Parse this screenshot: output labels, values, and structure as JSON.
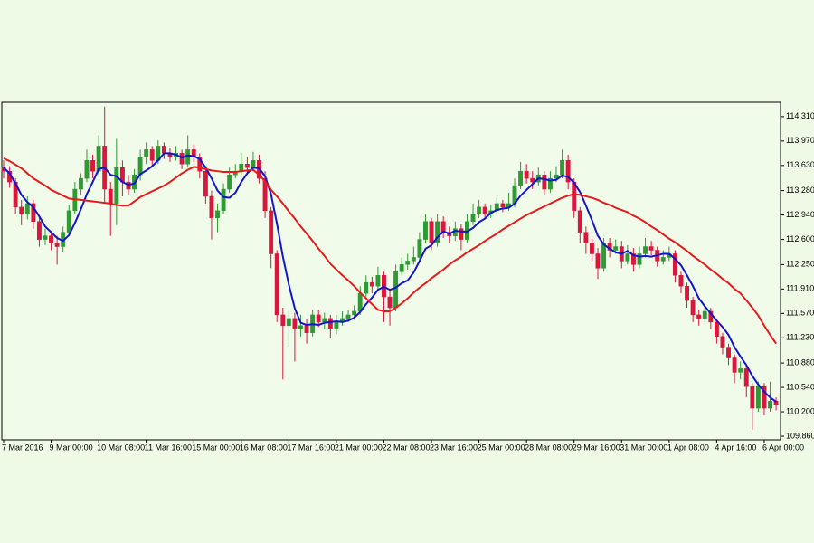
{
  "chart_data": {
    "type": "candlestick",
    "categories": [
      "7 Mar 2016",
      null,
      null,
      null,
      null,
      null,
      null,
      null,
      "9 Mar 00:00",
      null,
      null,
      null,
      null,
      null,
      null,
      null,
      "10 Mar 08:00",
      null,
      null,
      null,
      null,
      null,
      null,
      null,
      "11 Mar 16:00",
      null,
      null,
      null,
      null,
      null,
      null,
      null,
      "15 Mar 00:00",
      null,
      null,
      null,
      null,
      null,
      null,
      null,
      "16 Mar 08:00",
      null,
      null,
      null,
      null,
      null,
      null,
      null,
      "17 Mar 16:00",
      null,
      null,
      null,
      null,
      null,
      null,
      null,
      "21 Mar 00:00",
      null,
      null,
      null,
      null,
      null,
      null,
      null,
      "22 Mar 08:00",
      null,
      null,
      null,
      null,
      null,
      null,
      null,
      "23 Mar 16:00",
      null,
      null,
      null,
      null,
      null,
      null,
      null,
      "25 Mar 00:00",
      null,
      null,
      null,
      null,
      null,
      null,
      null,
      "28 Mar 08:00",
      null,
      null,
      null,
      null,
      null,
      null,
      null,
      "29 Mar 16:00",
      null,
      null,
      null,
      null,
      null,
      null,
      null,
      "31 Mar 00:00",
      null,
      null,
      null,
      null,
      null,
      null,
      null,
      "1 Apr 08:00",
      null,
      null,
      null,
      null,
      null,
      null,
      null,
      "4 Apr 16:00",
      null,
      null,
      null,
      null,
      null,
      null,
      null,
      "6 Apr 00:00",
      null,
      null
    ],
    "open": [
      113.6,
      113.55,
      113.4,
      113.05,
      112.95,
      113.1,
      112.85,
      112.6,
      112.65,
      112.55,
      112.5,
      112.7,
      113.0,
      113.3,
      113.45,
      113.7,
      113.55,
      113.9,
      113.3,
      113.1,
      113.6,
      113.4,
      113.3,
      113.5,
      113.75,
      113.85,
      113.7,
      113.9,
      113.8,
      113.75,
      113.8,
      113.65,
      113.85,
      113.75,
      113.55,
      113.2,
      112.9,
      113.0,
      113.3,
      113.5,
      113.55,
      113.65,
      113.6,
      113.7,
      113.45,
      113.0,
      112.4,
      111.55,
      111.4,
      111.5,
      111.35,
      111.4,
      111.3,
      111.55,
      111.45,
      111.5,
      111.35,
      111.45,
      111.5,
      111.55,
      111.6,
      111.85,
      112.0,
      111.95,
      112.1,
      111.8,
      111.65,
      112.15,
      112.25,
      112.3,
      112.35,
      112.6,
      112.85,
      112.55,
      112.85,
      112.7,
      112.65,
      112.75,
      112.6,
      112.85,
      112.95,
      113.05,
      112.95,
      113.0,
      113.1,
      113.05,
      113.1,
      113.35,
      113.55,
      113.45,
      113.4,
      113.5,
      113.3,
      113.45,
      113.5,
      113.7,
      113.4,
      113.0,
      112.7,
      112.55,
      112.4,
      112.2,
      112.55,
      112.45,
      112.5,
      112.3,
      112.4,
      112.25,
      112.4,
      112.5,
      112.45,
      112.3,
      112.35,
      112.4,
      112.1,
      111.95,
      111.75,
      111.55,
      111.5,
      111.6,
      111.45,
      111.25,
      111.1,
      110.95,
      110.75,
      110.8,
      110.55,
      110.25,
      110.55,
      110.25,
      110.35
    ],
    "high": [
      113.7,
      113.62,
      113.45,
      113.15,
      113.2,
      113.15,
      112.92,
      112.75,
      112.7,
      112.65,
      112.78,
      113.08,
      113.4,
      113.52,
      113.85,
      113.78,
      114.05,
      114.45,
      113.4,
      114.0,
      113.7,
      113.5,
      113.58,
      113.85,
      113.95,
      113.9,
      113.98,
      113.95,
      113.88,
      113.9,
      113.85,
      114.05,
      113.92,
      113.8,
      113.62,
      113.28,
      113.1,
      113.38,
      113.6,
      113.65,
      113.8,
      113.75,
      113.82,
      113.78,
      113.55,
      113.05,
      112.45,
      111.65,
      111.6,
      111.58,
      111.55,
      111.5,
      111.62,
      111.62,
      111.58,
      111.55,
      111.55,
      111.6,
      111.62,
      111.68,
      111.95,
      112.1,
      112.08,
      112.22,
      112.15,
      111.9,
      112.25,
      112.35,
      112.4,
      112.5,
      112.7,
      112.95,
      112.9,
      112.95,
      112.92,
      112.78,
      112.85,
      112.82,
      112.95,
      113.1,
      113.15,
      113.1,
      113.08,
      113.18,
      113.15,
      113.25,
      113.45,
      113.68,
      113.65,
      113.55,
      113.6,
      113.55,
      113.55,
      113.62,
      113.85,
      113.78,
      113.45,
      113.05,
      112.78,
      112.62,
      112.48,
      112.62,
      112.62,
      112.6,
      112.58,
      112.52,
      112.48,
      112.5,
      112.62,
      112.58,
      112.5,
      112.45,
      112.5,
      112.45,
      112.15,
      112.0,
      111.8,
      111.62,
      111.7,
      111.65,
      111.5,
      111.3,
      111.15,
      111.0,
      110.9,
      110.85,
      110.6,
      110.62,
      110.6,
      110.62,
      110.4
    ],
    "low": [
      113.45,
      113.32,
      112.95,
      112.8,
      112.88,
      112.75,
      112.5,
      112.52,
      112.45,
      112.25,
      112.42,
      112.65,
      112.95,
      113.22,
      113.4,
      113.45,
      113.5,
      113.1,
      112.65,
      112.8,
      113.2,
      113.22,
      113.25,
      113.42,
      113.65,
      113.62,
      113.65,
      113.72,
      113.68,
      113.7,
      113.58,
      113.6,
      113.68,
      113.45,
      113.1,
      112.6,
      112.7,
      112.95,
      113.25,
      113.45,
      113.5,
      113.52,
      113.55,
      113.38,
      112.9,
      112.2,
      111.45,
      110.65,
      111.1,
      110.9,
      111.25,
      111.15,
      111.25,
      111.38,
      111.35,
      111.22,
      111.28,
      111.4,
      111.45,
      111.48,
      111.55,
      111.8,
      111.85,
      111.9,
      111.45,
      111.4,
      111.6,
      112.1,
      112.18,
      112.25,
      112.3,
      112.55,
      112.45,
      112.5,
      112.62,
      112.55,
      112.58,
      112.45,
      112.55,
      112.8,
      112.9,
      112.88,
      112.9,
      112.95,
      112.98,
      113.0,
      113.05,
      113.3,
      113.38,
      113.3,
      113.35,
      113.22,
      113.25,
      113.4,
      113.45,
      113.3,
      112.9,
      112.55,
      112.4,
      112.3,
      112.05,
      112.15,
      112.35,
      112.4,
      112.2,
      112.25,
      112.15,
      112.2,
      112.35,
      112.38,
      112.22,
      112.25,
      112.3,
      112.0,
      111.85,
      111.65,
      111.45,
      111.4,
      111.45,
      111.35,
      111.15,
      111.0,
      110.85,
      110.6,
      110.65,
      110.4,
      109.95,
      110.2,
      110.15,
      110.2,
      110.22
    ],
    "close": [
      113.55,
      113.4,
      113.05,
      112.95,
      113.1,
      112.85,
      112.6,
      112.65,
      112.55,
      112.5,
      112.7,
      113.0,
      113.3,
      113.45,
      113.7,
      113.55,
      113.9,
      113.3,
      113.1,
      113.6,
      113.4,
      113.3,
      113.5,
      113.75,
      113.85,
      113.7,
      113.9,
      113.8,
      113.75,
      113.8,
      113.65,
      113.85,
      113.75,
      113.55,
      113.2,
      112.9,
      113.0,
      113.3,
      113.5,
      113.55,
      113.65,
      113.6,
      113.7,
      113.45,
      113.0,
      112.4,
      111.55,
      111.4,
      111.5,
      111.35,
      111.4,
      111.3,
      111.55,
      111.45,
      111.5,
      111.35,
      111.45,
      111.5,
      111.55,
      111.6,
      111.85,
      112.0,
      111.95,
      112.1,
      111.8,
      111.65,
      112.15,
      112.25,
      112.3,
      112.35,
      112.6,
      112.85,
      112.55,
      112.85,
      112.7,
      112.65,
      112.75,
      112.6,
      112.85,
      112.95,
      113.05,
      112.95,
      113.0,
      113.1,
      113.05,
      113.1,
      113.35,
      113.55,
      113.45,
      113.4,
      113.5,
      113.3,
      113.45,
      113.5,
      113.7,
      113.4,
      113.0,
      112.7,
      112.55,
      112.4,
      112.2,
      112.55,
      112.45,
      112.5,
      112.3,
      112.4,
      112.25,
      112.4,
      112.5,
      112.45,
      112.3,
      112.35,
      112.4,
      112.1,
      111.95,
      111.75,
      111.55,
      111.5,
      111.6,
      111.45,
      111.25,
      111.1,
      110.95,
      110.75,
      110.8,
      110.55,
      110.25,
      110.55,
      110.25,
      110.35,
      110.3
    ],
    "up_color": "#2f9a33",
    "down_color": "#d8173d",
    "overlays": [
      {
        "color": "#1414cc",
        "values": [
          113.6,
          113.52,
          113.38,
          113.22,
          113.12,
          113.05,
          112.92,
          112.78,
          112.7,
          112.62,
          112.58,
          112.66,
          112.83,
          113.02,
          113.23,
          113.4,
          113.58,
          113.6,
          113.5,
          113.48,
          113.4,
          113.36,
          113.38,
          113.51,
          113.56,
          113.62,
          113.7,
          113.8,
          113.8,
          113.78,
          113.74,
          113.77,
          113.76,
          113.72,
          113.6,
          113.45,
          113.28,
          113.19,
          113.18,
          113.25,
          113.4,
          113.52,
          113.6,
          113.59,
          113.48,
          113.23,
          112.82,
          112.36,
          111.97,
          111.64,
          111.44,
          111.41,
          111.42,
          111.41,
          111.44,
          111.45,
          111.46,
          111.45,
          111.47,
          111.51,
          111.59,
          111.7,
          111.79,
          111.9,
          111.94,
          111.9,
          111.93,
          111.99,
          112.03,
          112.14,
          112.3,
          112.47,
          112.52,
          112.63,
          112.71,
          112.68,
          112.72,
          112.71,
          112.71,
          112.76,
          112.84,
          112.89,
          112.97,
          113.01,
          113.03,
          113.04,
          113.1,
          113.21,
          113.29,
          113.37,
          113.45,
          113.44,
          113.42,
          113.43,
          113.49,
          113.47,
          113.39,
          113.26,
          113.07,
          112.87,
          112.65,
          112.53,
          112.47,
          112.42,
          112.4,
          112.44,
          112.38,
          112.36,
          112.37,
          112.36,
          112.38,
          112.4,
          112.4,
          112.33,
          112.24,
          112.1,
          111.95,
          111.78,
          111.67,
          111.57,
          111.47,
          111.38,
          111.27,
          111.1,
          110.97,
          110.85,
          110.7,
          110.58,
          110.48,
          110.4,
          110.34
        ]
      },
      {
        "color": "#e61a1a",
        "values": [
          113.73,
          113.69,
          113.64,
          113.59,
          113.52,
          113.45,
          113.4,
          113.35,
          113.29,
          113.25,
          113.21,
          113.17,
          113.16,
          113.15,
          113.14,
          113.13,
          113.12,
          113.11,
          113.1,
          113.08,
          113.07,
          113.07,
          113.13,
          113.19,
          113.23,
          113.27,
          113.31,
          113.35,
          113.4,
          113.46,
          113.52,
          113.57,
          113.61,
          113.6,
          113.58,
          113.56,
          113.55,
          113.54,
          113.54,
          113.54,
          113.55,
          113.56,
          113.57,
          113.5,
          113.41,
          113.29,
          113.2,
          113.1,
          112.99,
          112.89,
          112.78,
          112.68,
          112.58,
          112.47,
          112.37,
          112.26,
          112.18,
          112.1,
          112.03,
          111.95,
          111.86,
          111.78,
          111.7,
          111.62,
          111.6,
          111.6,
          111.65,
          111.71,
          111.78,
          111.86,
          111.93,
          111.99,
          112.06,
          112.12,
          112.18,
          112.25,
          112.31,
          112.36,
          112.42,
          112.47,
          112.52,
          112.58,
          112.63,
          112.68,
          112.74,
          112.79,
          112.84,
          112.89,
          112.94,
          112.98,
          113.02,
          113.06,
          113.1,
          113.14,
          113.18,
          113.21,
          113.23,
          113.22,
          113.2,
          113.18,
          113.15,
          113.11,
          113.08,
          113.04,
          113.01,
          112.98,
          112.93,
          112.89,
          112.84,
          112.78,
          112.73,
          112.67,
          112.61,
          112.56,
          112.5,
          112.44,
          112.37,
          112.31,
          112.25,
          112.18,
          112.12,
          112.05,
          111.99,
          111.91,
          111.85,
          111.75,
          111.65,
          111.54,
          111.4,
          111.27,
          111.15
        ]
      }
    ],
    "ylim": [
      109.81,
      114.51
    ],
    "yticks": [
      {
        "value": 114.31,
        "label": "114.310"
      },
      {
        "value": 113.97,
        "label": "113.970"
      },
      {
        "value": 113.63,
        "label": "113.630"
      },
      {
        "value": 113.28,
        "label": "113.280"
      },
      {
        "value": 112.94,
        "label": "112.940"
      },
      {
        "value": 112.6,
        "label": "112.600"
      },
      {
        "value": 112.25,
        "label": "112.250"
      },
      {
        "value": 111.91,
        "label": "111.910"
      },
      {
        "value": 111.57,
        "label": "111.570"
      },
      {
        "value": 111.23,
        "label": "111.230"
      },
      {
        "value": 110.88,
        "label": "110.880"
      },
      {
        "value": 110.54,
        "label": "110.540"
      },
      {
        "value": 110.2,
        "label": "110.200"
      },
      {
        "value": 109.86,
        "label": "109.860"
      }
    ]
  }
}
